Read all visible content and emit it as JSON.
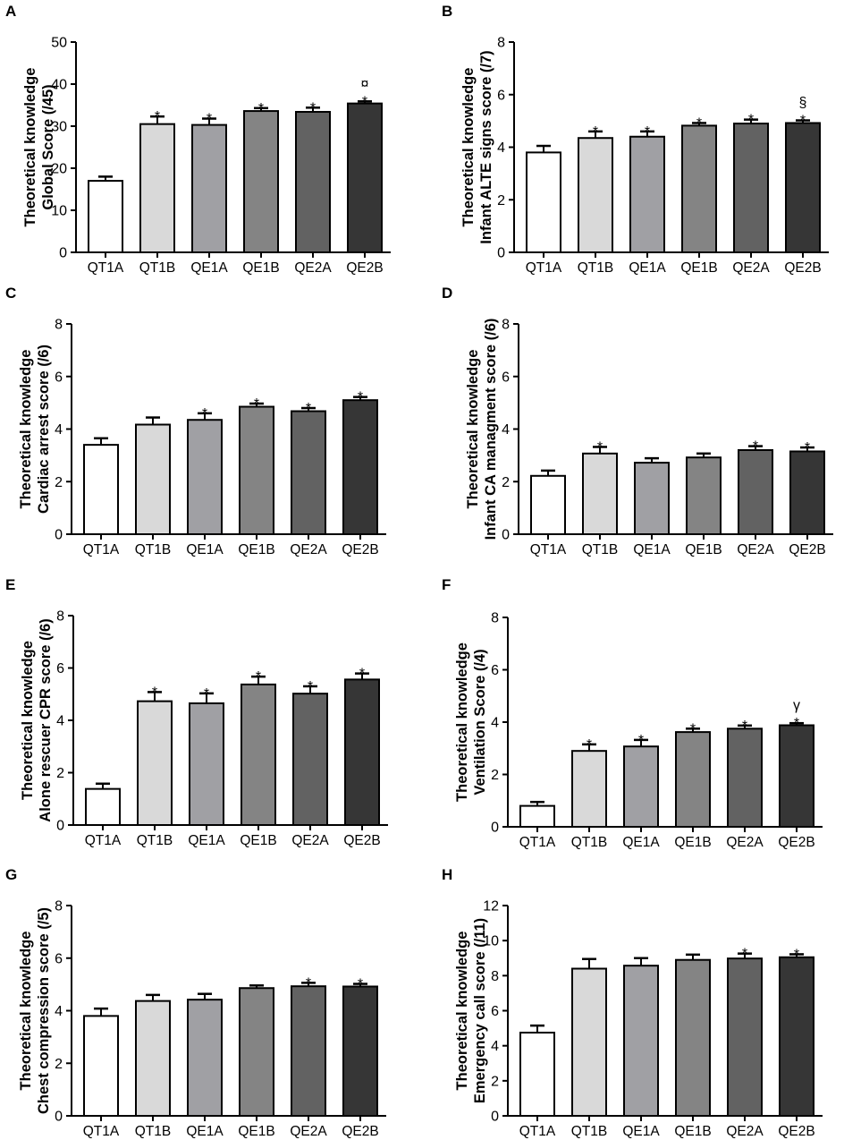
{
  "colors": {
    "bars": [
      "#ffffff",
      "#d9d9d9",
      "#a0a0a4",
      "#848484",
      "#626262",
      "#363636"
    ],
    "outline": "#000000"
  },
  "chart_data": [
    {
      "type": "bar",
      "letter": "A",
      "categories": [
        "QT1A",
        "QT1B",
        "QE1A",
        "QE1B",
        "QE2A",
        "QE2B"
      ],
      "values": [
        17,
        30.5,
        30.3,
        33.6,
        33.4,
        35.4
      ],
      "errors": [
        1.0,
        1.8,
        1.5,
        0.7,
        1.0,
        0.5
      ],
      "ylabel_lines": [
        "Theoretical knowledge",
        "Global Score (/45)"
      ],
      "ylim": [
        0,
        50
      ],
      "yticks": [
        0,
        10,
        20,
        30,
        40,
        50
      ],
      "annotations": [
        "",
        "*",
        "*",
        "*",
        "*",
        "¤\n*"
      ]
    },
    {
      "type": "bar",
      "letter": "B",
      "categories": [
        "QT1A",
        "QT1B",
        "QE1A",
        "QE1B",
        "QE2A",
        "QE2B"
      ],
      "values": [
        3.8,
        4.35,
        4.4,
        4.82,
        4.9,
        4.92
      ],
      "errors": [
        0.25,
        0.25,
        0.2,
        0.1,
        0.15,
        0.1
      ],
      "ylabel_lines": [
        "Theoretical knowledge",
        "Infant ALTE signs score (/7)"
      ],
      "ylim": [
        0,
        8
      ],
      "yticks": [
        0,
        2,
        4,
        6,
        8
      ],
      "annotations": [
        "",
        "*",
        "*",
        "*",
        "*",
        "§\n*"
      ]
    },
    {
      "type": "bar",
      "letter": "C",
      "categories": [
        "QT1A",
        "QT1B",
        "QE1A",
        "QE1B",
        "QE2A",
        "QE2B"
      ],
      "values": [
        3.4,
        4.17,
        4.35,
        4.85,
        4.68,
        5.1
      ],
      "errors": [
        0.25,
        0.27,
        0.25,
        0.12,
        0.12,
        0.12
      ],
      "ylabel_lines": [
        "Theoretical knowledge",
        "Cardiac arrest score  (/6)"
      ],
      "ylim": [
        0,
        8
      ],
      "yticks": [
        0,
        2,
        4,
        6,
        8
      ],
      "annotations": [
        "",
        "",
        "*",
        "*",
        "*",
        "*"
      ]
    },
    {
      "type": "bar",
      "letter": "D",
      "categories": [
        "QT1A",
        "QT1B",
        "QE1A",
        "QE1B",
        "QE2A",
        "QE2B"
      ],
      "values": [
        2.22,
        3.07,
        2.72,
        2.92,
        3.2,
        3.15
      ],
      "errors": [
        0.2,
        0.25,
        0.17,
        0.15,
        0.15,
        0.15
      ],
      "ylabel_lines": [
        "Theoretical knowledge",
        "Infant CA managment score (/6)"
      ],
      "ylim": [
        0,
        8
      ],
      "yticks": [
        0,
        2,
        4,
        6,
        8
      ],
      "annotations": [
        "",
        "*",
        "",
        "",
        "*",
        "*"
      ]
    },
    {
      "type": "bar",
      "letter": "E",
      "categories": [
        "QT1A",
        "QT1B",
        "QE1A",
        "QE1B",
        "QE2A",
        "QE2B"
      ],
      "values": [
        1.38,
        4.73,
        4.65,
        5.37,
        5.02,
        5.56
      ],
      "errors": [
        0.2,
        0.35,
        0.38,
        0.3,
        0.28,
        0.23
      ],
      "ylabel_lines": [
        "Theoretical knowledge",
        "Alone rescuer CPR score (/6)"
      ],
      "ylim": [
        0,
        8
      ],
      "yticks": [
        0,
        2,
        4,
        6,
        8
      ],
      "annotations": [
        "",
        "*",
        "*",
        "*",
        "*",
        "*"
      ]
    },
    {
      "type": "bar",
      "letter": "F",
      "categories": [
        "QT1A",
        "QT1B",
        "QE1A",
        "QE1B",
        "QE2A",
        "QE2B"
      ],
      "values": [
        0.8,
        2.9,
        3.07,
        3.62,
        3.75,
        3.88
      ],
      "errors": [
        0.15,
        0.25,
        0.25,
        0.13,
        0.12,
        0.08
      ],
      "ylabel_lines": [
        "Theoretical knowledge",
        "Ventilation Score (/4)"
      ],
      "ylim": [
        0,
        8
      ],
      "yticks": [
        0,
        2,
        4,
        6,
        8
      ],
      "annotations": [
        "",
        "*",
        "*",
        "*",
        "*",
        "γ\n*"
      ]
    },
    {
      "type": "bar",
      "letter": "G",
      "categories": [
        "QT1A",
        "QT1B",
        "QE1A",
        "QE1B",
        "QE2A",
        "QE2B"
      ],
      "values": [
        3.8,
        4.37,
        4.42,
        4.86,
        4.93,
        4.92
      ],
      "errors": [
        0.28,
        0.23,
        0.22,
        0.1,
        0.13,
        0.1
      ],
      "ylabel_lines": [
        "Theoretical knowledge",
        "Chest compression score  (/5)"
      ],
      "ylim": [
        0,
        8
      ],
      "yticks": [
        0,
        2,
        4,
        6,
        8
      ],
      "annotations": [
        "",
        "",
        "",
        "",
        "*",
        "*"
      ]
    },
    {
      "type": "bar",
      "letter": "H",
      "categories": [
        "QT1A",
        "QT1B",
        "QE1A",
        "QE1B",
        "QE2A",
        "QE2B"
      ],
      "values": [
        4.75,
        8.4,
        8.57,
        8.9,
        8.98,
        9.05
      ],
      "errors": [
        0.4,
        0.55,
        0.43,
        0.3,
        0.28,
        0.17
      ],
      "ylabel_lines": [
        "Theoretical knowledge",
        "Emergency call score (/11)"
      ],
      "ylim": [
        0,
        12
      ],
      "yticks": [
        0,
        2,
        4,
        6,
        8,
        10,
        12
      ],
      "annotations": [
        "",
        "",
        "",
        "",
        "*",
        "*"
      ]
    }
  ]
}
